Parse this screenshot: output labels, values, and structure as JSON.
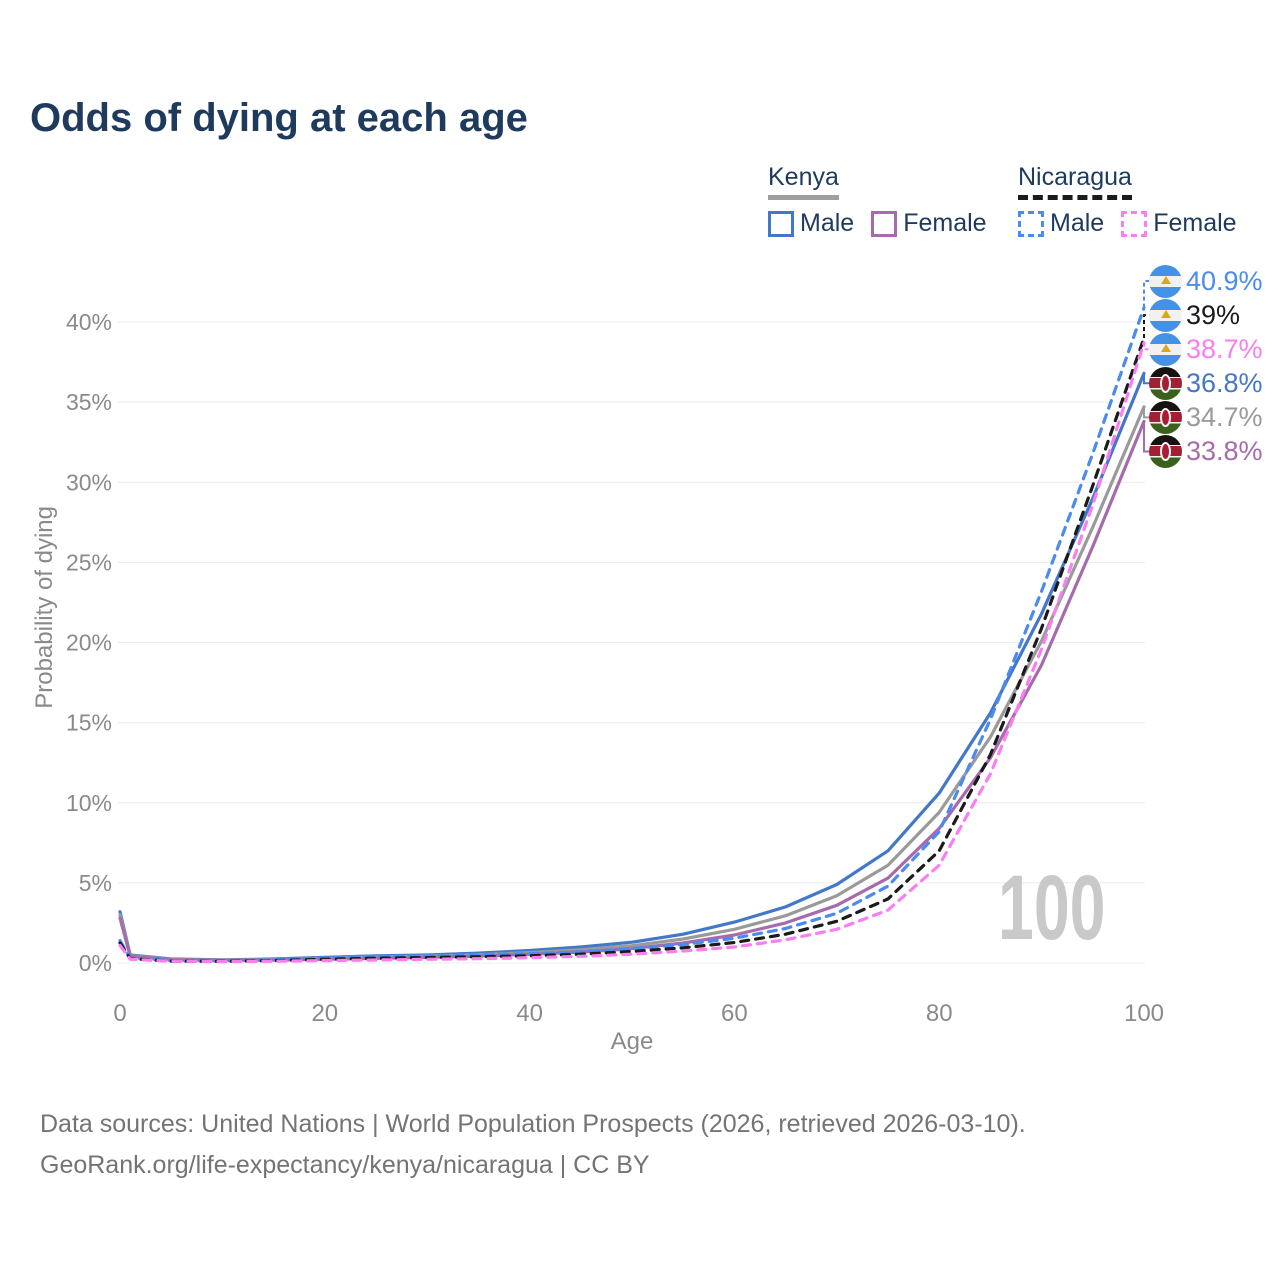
{
  "title": "Odds of dying at each age",
  "watermark_age": "100",
  "legend": {
    "groups": [
      {
        "country": "Kenya",
        "line": "solid",
        "underline_color": "#9e9e9e",
        "items": [
          {
            "label": "Male",
            "color": "#4377c9"
          },
          {
            "label": "Female",
            "color": "#a66bac"
          }
        ]
      },
      {
        "country": "Nicaragua",
        "line": "dashed",
        "underline_color": "#1b1b1b",
        "items": [
          {
            "label": "Male",
            "color": "#4b8bf0"
          },
          {
            "label": "Female",
            "color": "#f97ef0"
          }
        ]
      }
    ]
  },
  "chart_data": {
    "type": "line",
    "title": "Odds of dying at each age",
    "xlabel": "Age",
    "ylabel": "Probability of dying",
    "xlim": [
      0,
      100
    ],
    "ylim_pct": [
      0,
      42
    ],
    "xticks": [
      0,
      20,
      40,
      60,
      80,
      100
    ],
    "ytick_labels": [
      "0%",
      "5%",
      "10%",
      "15%",
      "20%",
      "25%",
      "30%",
      "35%",
      "40%"
    ],
    "grid": "horizontal",
    "legend_position": "top-right",
    "ages": [
      0,
      1,
      5,
      10,
      15,
      20,
      25,
      30,
      35,
      40,
      45,
      50,
      55,
      60,
      65,
      70,
      75,
      80,
      85,
      90,
      95,
      100
    ],
    "series": [
      {
        "name": "Nicaragua Male",
        "country": "nicaragua",
        "sex": "male",
        "line": "dashed",
        "color": "#4b8bf0",
        "end_label": "40.9%",
        "values_pct": [
          1.4,
          0.3,
          0.14,
          0.12,
          0.2,
          0.32,
          0.42,
          0.46,
          0.52,
          0.58,
          0.7,
          0.9,
          1.15,
          1.55,
          2.15,
          3.1,
          4.8,
          8.2,
          15.2,
          23.2,
          31.8,
          40.9
        ]
      },
      {
        "name": "Nicaragua",
        "country": "nicaragua",
        "sex": "both",
        "line": "dashed",
        "color": "#1b1b1b",
        "end_label": "39%",
        "values_pct": [
          1.25,
          0.27,
          0.12,
          0.1,
          0.15,
          0.23,
          0.3,
          0.34,
          0.39,
          0.45,
          0.55,
          0.72,
          0.95,
          1.28,
          1.8,
          2.6,
          4.0,
          7.0,
          13.0,
          20.9,
          29.8,
          39.0
        ]
      },
      {
        "name": "Nicaragua Female",
        "country": "nicaragua",
        "sex": "female",
        "line": "dashed",
        "color": "#f97ef0",
        "end_label": "38.7%",
        "values_pct": [
          1.1,
          0.24,
          0.11,
          0.09,
          0.11,
          0.15,
          0.19,
          0.23,
          0.27,
          0.33,
          0.42,
          0.55,
          0.75,
          1.0,
          1.45,
          2.1,
          3.3,
          6.1,
          11.8,
          19.6,
          28.6,
          38.7
        ]
      },
      {
        "name": "Kenya Male",
        "country": "kenya",
        "sex": "male",
        "line": "solid",
        "color": "#4377c9",
        "end_label": "36.8%",
        "values_pct": [
          3.2,
          0.5,
          0.25,
          0.2,
          0.25,
          0.35,
          0.45,
          0.5,
          0.62,
          0.78,
          1.0,
          1.3,
          1.8,
          2.55,
          3.5,
          4.9,
          7.0,
          10.6,
          15.6,
          21.8,
          29.0,
          36.8
        ]
      },
      {
        "name": "Kenya",
        "country": "kenya",
        "sex": "both",
        "line": "solid",
        "color": "#9a9a9a",
        "end_label": "34.7%",
        "values_pct": [
          3.0,
          0.46,
          0.22,
          0.18,
          0.21,
          0.29,
          0.37,
          0.43,
          0.52,
          0.65,
          0.83,
          1.08,
          1.5,
          2.1,
          2.95,
          4.2,
          6.1,
          9.4,
          14.1,
          20.1,
          27.2,
          34.7
        ]
      },
      {
        "name": "Kenya Female",
        "country": "kenya",
        "sex": "female",
        "line": "solid",
        "color": "#a66bac",
        "end_label": "33.8%",
        "values_pct": [
          2.8,
          0.42,
          0.2,
          0.16,
          0.18,
          0.23,
          0.29,
          0.35,
          0.43,
          0.54,
          0.68,
          0.9,
          1.25,
          1.75,
          2.5,
          3.6,
          5.3,
          8.4,
          12.8,
          18.6,
          26.0,
          33.8
        ]
      }
    ]
  },
  "footer": {
    "line1": "Data sources: United Nations | World Population Prospects (2026, retrieved 2026-03-10).",
    "line2": "GeoRank.org/life-expectancy/kenya/nicaragua | CC BY"
  }
}
